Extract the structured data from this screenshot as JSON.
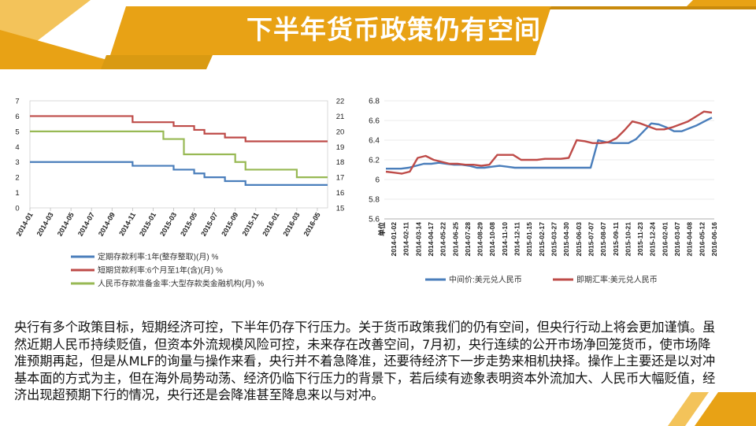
{
  "slide": {
    "title": "下半年货币政策仍有空间",
    "body": "央行有多个政策目标，短期经济可控，下半年仍存下行压力。关于货币政策我们的仍有空间，但央行行动上将会更加谨慎。虽然近期人民币持续贬值，但资本外流规模风险可控，未来存在改善空间，7月初，央行连续的公开市场净回笼货币，使市场降准预期再起，但是从MLF的询量与操作来看，央行并不着急降准，还要待经济下一步走势来相机抉择。操作上主要还是以对冲基本面的方式为主，但在海外局势动荡、经济仍临下行压力的背景下，若后续有迹象表明资本外流加大、人民币大幅贬值，经济出现超预期下行的情况，央行还是会降准甚至降息来以与对冲。",
    "colors": {
      "title_bar": "#e8a215",
      "accent_dark": "#c98a0c",
      "accent_light": "#f3c35a"
    }
  },
  "chart_data": [
    {
      "type": "line",
      "x": [
        "2014-01",
        "2014-02",
        "2014-03",
        "2014-04",
        "2014-05",
        "2014-06",
        "2014-07",
        "2014-08",
        "2014-09",
        "2014-10",
        "2014-11",
        "2014-12",
        "2015-01",
        "2015-02",
        "2015-03",
        "2015-04",
        "2015-05",
        "2015-06",
        "2015-07",
        "2015-08",
        "2015-09",
        "2015-10",
        "2015-11",
        "2015-12",
        "2016-01",
        "2016-02",
        "2016-03",
        "2016-04",
        "2016-05",
        "2016-06"
      ],
      "xticks": [
        "2014-01",
        "2014-03",
        "2014-05",
        "2014-07",
        "2014-09",
        "2014-11",
        "2015-01",
        "2015-03",
        "2015-05",
        "2015-07",
        "2015-09",
        "2015-11",
        "2016-01",
        "2016-03",
        "2016-05"
      ],
      "ylim_left": [
        0,
        7
      ],
      "yticks_left": [
        "0",
        "1",
        "2",
        "3",
        "4",
        "5",
        "6",
        "7"
      ],
      "ylim_right": [
        15,
        22
      ],
      "yticks_right": [
        "15",
        "16",
        "17",
        "18",
        "19",
        "20",
        "21",
        "22"
      ],
      "series": [
        {
          "name": "定期存款利率:1年(整存整取)(月) %",
          "axis": "left",
          "color": "#4a7ebb",
          "values": [
            3,
            3,
            3,
            3,
            3,
            3,
            3,
            3,
            3,
            3,
            2.75,
            2.75,
            2.75,
            2.75,
            2.5,
            2.5,
            2.25,
            2,
            2,
            1.75,
            1.75,
            1.5,
            1.5,
            1.5,
            1.5,
            1.5,
            1.5,
            1.5,
            1.5,
            1.5
          ]
        },
        {
          "name": "短期贷款利率:6个月至1年(含)(月) %",
          "axis": "left",
          "color": "#be4b48",
          "values": [
            6,
            6,
            6,
            6,
            6,
            6,
            6,
            6,
            6,
            6,
            5.6,
            5.6,
            5.6,
            5.6,
            5.35,
            5.35,
            5.1,
            4.85,
            4.85,
            4.6,
            4.6,
            4.35,
            4.35,
            4.35,
            4.35,
            4.35,
            4.35,
            4.35,
            4.35,
            4.35
          ]
        },
        {
          "name": "人民币存款准备金率:大型存款类金融机构(月) %",
          "axis": "right",
          "color": "#98b954",
          "values": [
            20,
            20,
            20,
            20,
            20,
            20,
            20,
            20,
            20,
            20,
            20,
            20,
            20,
            19.5,
            19.5,
            18.5,
            18.5,
            18.5,
            18.5,
            18.5,
            18,
            17.5,
            17.5,
            17.5,
            17.5,
            17.5,
            17,
            17,
            17,
            17
          ]
        }
      ]
    },
    {
      "type": "line",
      "ylabel": "单位",
      "ylim": [
        5.6,
        6.8
      ],
      "yticks": [
        "5.6",
        "5.8",
        "6",
        "6.2",
        "6.4",
        "6.6",
        "6.8"
      ],
      "xticks": [
        "2014-01-02",
        "2014-02-11",
        "2014-03-14",
        "2014-04-17",
        "2014-05-22",
        "2014-06-25",
        "2014-07-28",
        "2014-08-29",
        "2014-10-08",
        "2014-11-10",
        "2014-12-11",
        "2015-01-15",
        "2015-02-17",
        "2015-03-27",
        "2015-04-30",
        "2015-06-03",
        "2015-07-07",
        "2015-08-07",
        "2015-09-11",
        "2015-10-21",
        "2015-11-23",
        "2015-12-24",
        "2016-02-01",
        "2016-03-07",
        "2016-04-08",
        "2016-05-12",
        "2016-06-16"
      ],
      "series": [
        {
          "name": "中间价:美元兑人民币",
          "color": "#4a7ebb",
          "values": [
            6.11,
            6.11,
            6.11,
            6.12,
            6.14,
            6.16,
            6.16,
            6.17,
            6.16,
            6.15,
            6.15,
            6.14,
            6.12,
            6.12,
            6.13,
            6.14,
            6.13,
            6.12,
            6.12,
            6.12,
            6.12,
            6.12,
            6.12,
            6.12,
            6.12,
            6.12,
            6.12,
            6.12,
            6.4,
            6.38,
            6.37,
            6.37,
            6.37,
            6.41,
            6.49,
            6.57,
            6.56,
            6.53,
            6.49,
            6.49,
            6.52,
            6.55,
            6.59,
            6.63
          ]
        },
        {
          "name": "即期汇率:美元兑人民币",
          "color": "#be4b48",
          "values": [
            6.08,
            6.07,
            6.06,
            6.08,
            6.22,
            6.24,
            6.2,
            6.18,
            6.16,
            6.16,
            6.15,
            6.15,
            6.14,
            6.15,
            6.25,
            6.25,
            6.25,
            6.2,
            6.2,
            6.2,
            6.21,
            6.21,
            6.21,
            6.22,
            6.4,
            6.39,
            6.37,
            6.37,
            6.38,
            6.42,
            6.5,
            6.59,
            6.57,
            6.54,
            6.51,
            6.51,
            6.53,
            6.56,
            6.59,
            6.64,
            6.69,
            6.68
          ]
        }
      ]
    }
  ]
}
